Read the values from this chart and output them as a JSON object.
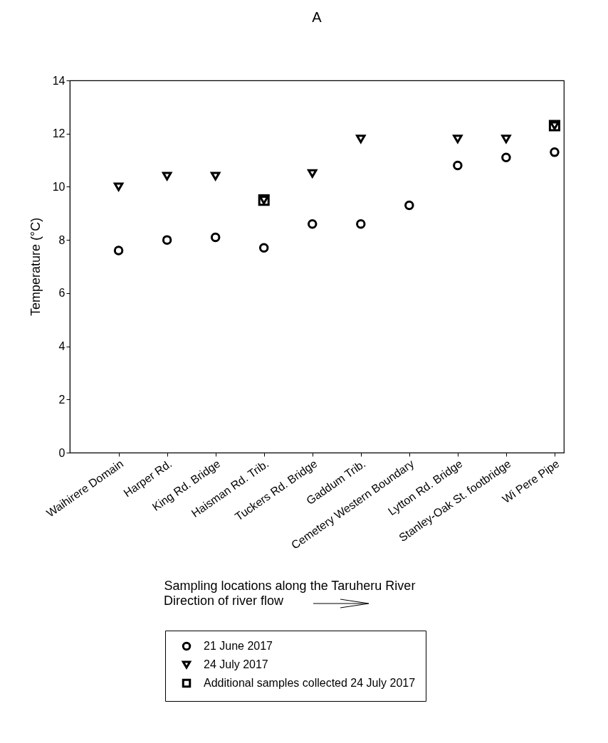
{
  "chart_data": {
    "type": "scatter",
    "title": "A",
    "xlabel": "Sampling locations along the Taruheru River",
    "ylabel": "Temperature (°C)",
    "annotations": [
      "Direction of river flow"
    ],
    "categories": [
      "Waihirere Domain",
      "Harper Rd.",
      "King Rd. Bridge",
      "Haisman Rd. Trib.",
      "Tuckers Rd. Bridge",
      "Gaddum Trib.",
      "Cemetery Western Boundary",
      "Lytton Rd. Bridge",
      "Stanley-Oak St. footbridge",
      "Wi Pere Pipe"
    ],
    "series": [
      {
        "name": "21 June 2017",
        "color": "#000000",
        "marker": "circle",
        "values": [
          7.6,
          8.0,
          8.1,
          7.7,
          8.6,
          8.6,
          9.3,
          10.8,
          11.1,
          11.3
        ]
      },
      {
        "name": "24 July 2017",
        "color": "#000000",
        "marker": "triangle",
        "values": [
          10.0,
          10.4,
          10.4,
          9.5,
          10.5,
          11.8,
          null,
          11.8,
          11.8,
          12.3
        ]
      },
      {
        "name": "Additional samples collected 24 July 2017",
        "color": "#000000",
        "marker": "square",
        "values": [
          null,
          null,
          null,
          9.5,
          null,
          null,
          null,
          null,
          null,
          12.3
        ]
      }
    ],
    "ylim": [
      0,
      14
    ],
    "yticks": [
      0,
      2,
      4,
      6,
      8,
      10,
      12,
      14
    ],
    "grid": false,
    "legend": "bottom"
  }
}
